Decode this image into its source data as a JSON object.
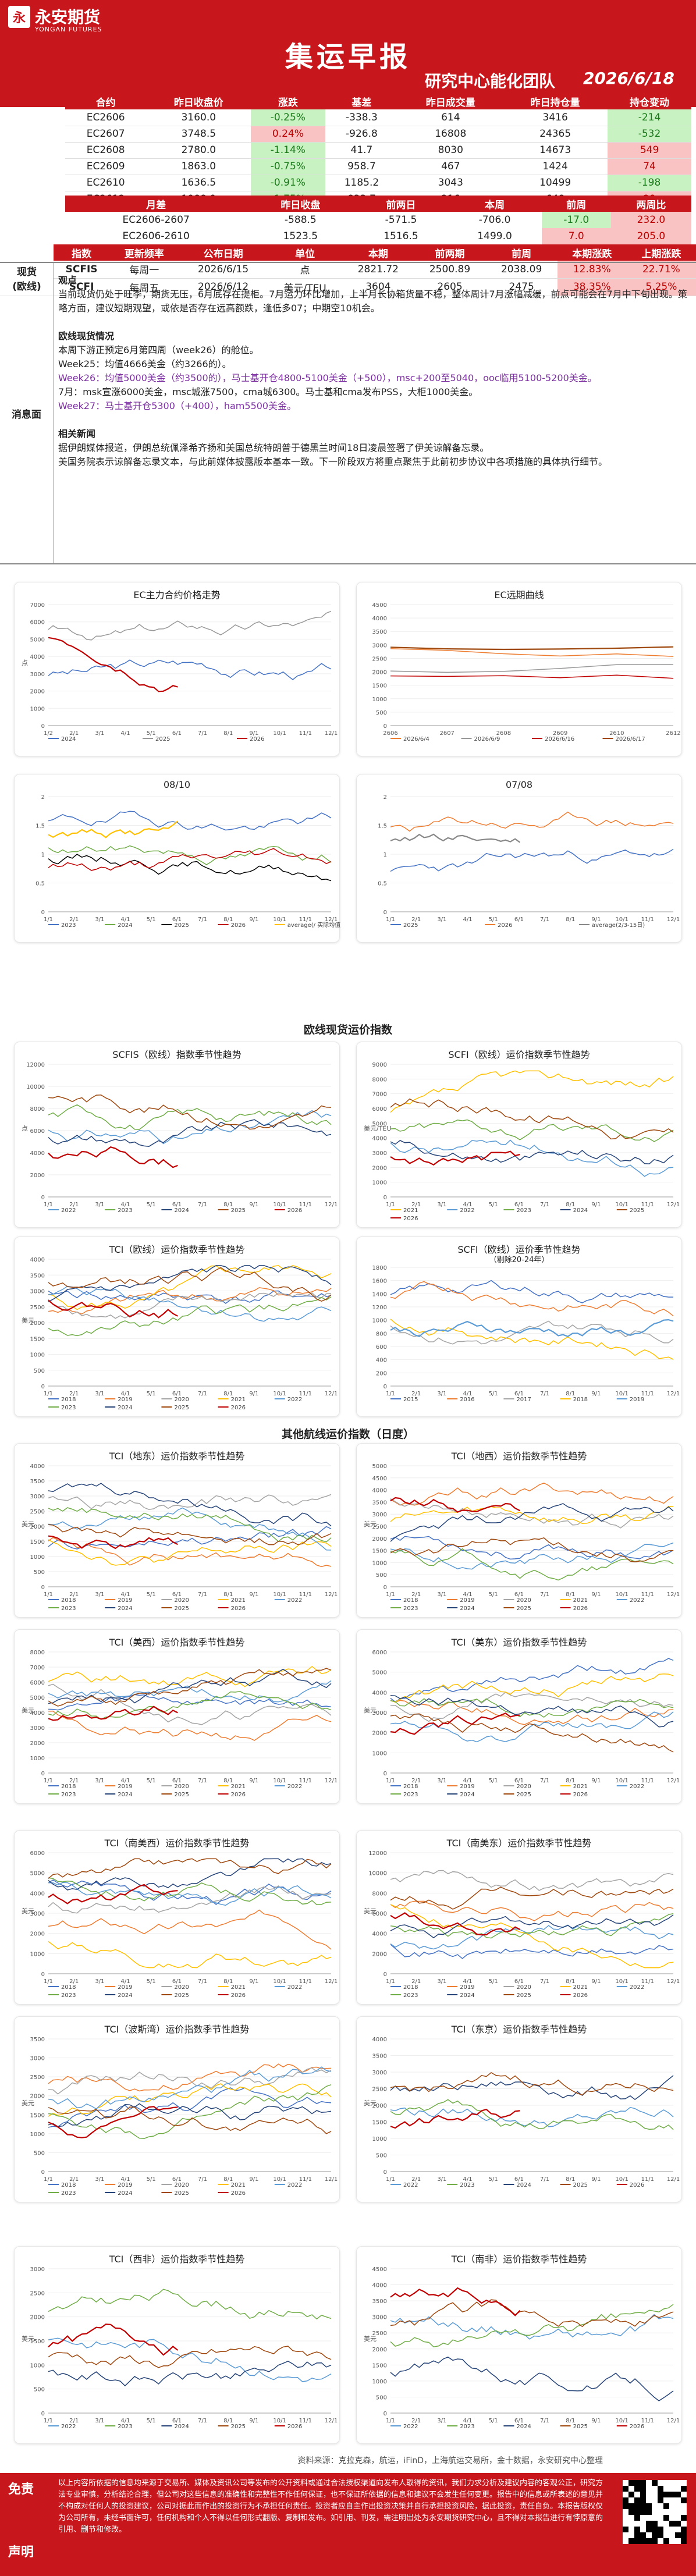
{
  "header": {
    "logo_glyph": "永",
    "logo_cn": "永安期货",
    "logo_en": "YONGAN FUTURES",
    "title": "集运早报",
    "team": "研究中心能化团队",
    "date": "2026/6/18"
  },
  "futures": {
    "columns": [
      "合约",
      "昨日收盘价",
      "涨跌",
      "基差",
      "昨日成交量",
      "昨日持仓量",
      "持仓变动"
    ],
    "rows": [
      [
        "EC2606",
        "3160.0",
        "-0.25%",
        "-338.3",
        "614",
        "3416",
        "-214"
      ],
      [
        "EC2607",
        "3748.5",
        "0.24%",
        "-926.8",
        "16808",
        "24365",
        "-532"
      ],
      [
        "EC2608",
        "2780.0",
        "-1.14%",
        "41.7",
        "8030",
        "14673",
        "549"
      ],
      [
        "EC2609",
        "1863.0",
        "-0.75%",
        "958.7",
        "467",
        "1424",
        "74"
      ],
      [
        "EC2610",
        "1636.5",
        "-0.91%",
        "1185.2",
        "3043",
        "10499",
        "-198"
      ],
      [
        "EC2612",
        "1988.0",
        "-1.75%",
        "833.7",
        "216",
        "648",
        "29"
      ]
    ]
  },
  "spreads": {
    "columns": [
      "月差",
      "昨日收盘",
      "前两日",
      "本周",
      "前周",
      "两周比"
    ],
    "rows": [
      [
        "EC2606-2607",
        "-588.5",
        "-571.5",
        "-706.0",
        "-17.0",
        "232.0"
      ],
      [
        "EC2606-2610",
        "1523.5",
        "1516.5",
        "1499.0",
        "7.0",
        "205.0"
      ]
    ]
  },
  "spot": {
    "columns": [
      "指数",
      "更新频率",
      "公布日期",
      "单位",
      "本期",
      "前两期",
      "前周",
      "本期涨跌",
      "上期涨跌"
    ],
    "side_label": "现货\n(欧线)",
    "rows": [
      [
        "SCFIS",
        "每周一",
        "2026/6/15",
        "点",
        "2821.72",
        "2500.89",
        "2038.09",
        "12.83%",
        "22.71%"
      ],
      [
        "SCFI",
        "每周五",
        "2026/6/12",
        "美元/TEU",
        "3604",
        "2605",
        "2475",
        "38.35%",
        "5.25%"
      ]
    ]
  },
  "news": {
    "side": "消息面",
    "h1": "观点",
    "p1": "当前现货仍处于旺季，期货无压，6月底存在提柜。7月运力环比增加，上半月长协箱货量不稳，整体周计7月涨幅减缓，前点可能会在7月中下旬出现。策略方面，建议短期观望，或依是否存在远高额跌，逢低多07；中期空10机会。",
    "h2": "欧线现货情况",
    "p2_1": "本周下游正预定6月第四周（week26）的舱位。",
    "p2_2": "Week25：均值4666美金（约3266的）。",
    "p2_3": "Week26：均值5000美金（约3500的），马士基开仓4800-5100美金（+500），msc+200至5040，ooc临用5100-5200美金。",
    "p2_4": "7月：msk宣涨6000美金，msc城涨7500，cma城6300。马士基和cma发布PSS，大柜1000美金。",
    "p2_5": "Week27：马士基开仓5300（+400），ham5500美金。",
    "h3": "相关新闻",
    "p3_1": "据伊朗媒体报道，伊朗总统佩泽希齐扬和美国总统特朗普于德黑兰时间18日凌晨签署了伊美谅解备忘录。",
    "p3_2": "美国务院表示谅解备忘录文本，与此前媒体披露版本基本一致。下一阶段双方将重点聚焦于此前初步协议中各项措施的具体执行细节。"
  },
  "charts": {
    "ec_main": {
      "title": "EC主力合约价格走势",
      "yticks": [
        "7000",
        "6000",
        "5000",
        "4000",
        "3000",
        "2000",
        "1000",
        "0"
      ],
      "ylabel": "点",
      "xticks": [
        "1/2",
        "2/1",
        "3/1",
        "4/1",
        "5/1",
        "6/1",
        "7/1",
        "8/1",
        "9/1",
        "10/1",
        "11/1",
        "12/1"
      ],
      "legend": [
        "2024",
        "2025",
        "2026"
      ]
    },
    "ec_curve": {
      "title": "EC远期曲线",
      "yticks": [
        "4500",
        "4000",
        "3500",
        "3000",
        "2500",
        "2000",
        "1500",
        "1000",
        "500",
        "0"
      ],
      "xticks": [
        "2606",
        "2607",
        "2608",
        "2609",
        "2610",
        "2612"
      ],
      "legend": [
        "2026/6/4",
        "2026/6/9",
        "2026/6/16",
        "2026/6/17"
      ]
    },
    "s0810": {
      "title": "08/10",
      "yticks": [
        "2",
        "1.5",
        "1",
        "0.5",
        "0"
      ],
      "legend": [
        "2023",
        "2024",
        "2025",
        "2026",
        "average(/ 实际均值)"
      ]
    },
    "s0708": {
      "title": "07/08",
      "yticks": [
        "2",
        "1.5",
        "1",
        "0.5",
        "0"
      ],
      "legend": [
        "2025",
        "2026",
        "average(2/3-15日)"
      ]
    },
    "sec_eu": "欧线现货运价指数",
    "scfis": {
      "title": "SCFIS（欧线）指数季节性趋势",
      "ylabel": "点",
      "yticks": [
        "12000",
        "10000",
        "8000",
        "6000",
        "4000",
        "2000",
        "0"
      ],
      "legend": [
        "2022",
        "2023",
        "2024",
        "2025",
        "2026"
      ]
    },
    "scfi_eu": {
      "title": "SCFI（欧线）运价指数季节性趋势",
      "ylabel": "美元/TEU",
      "yticks": [
        "9000",
        "8000",
        "7000",
        "6000",
        "5000",
        "4000",
        "3000",
        "2000",
        "1000",
        "0"
      ],
      "legend": [
        "2021",
        "2022",
        "2023",
        "2024",
        "2025",
        "2026"
      ]
    },
    "tci_eu": {
      "title": "TCI（欧线）运价指数季节性趋势",
      "ylabel": "美元",
      "yticks": [
        "4000",
        "3500",
        "3000",
        "2500",
        "2000",
        "1500",
        "1000",
        "500",
        "0"
      ],
      "legend": [
        "2018",
        "2019",
        "2020",
        "2021",
        "2022",
        "2023",
        "2024",
        "2025",
        "2026"
      ]
    },
    "scfi_ex": {
      "title": "SCFI（欧线）运价季节性趋势",
      "subtitle": "（剔除20-24年）",
      "yticks": [
        "1800",
        "1600",
        "1400",
        "1200",
        "1000",
        "800",
        "600",
        "400",
        "200",
        "0"
      ],
      "legend": [
        "2015",
        "2016",
        "2017",
        "2018",
        "2019"
      ]
    },
    "sec_other": "其他航线运价指数（日度）",
    "tci_fe": {
      "title": "TCI（地东）运价指数季节性趋势",
      "ylabel": "美元",
      "yticks": [
        "4000",
        "3500",
        "3000",
        "2500",
        "2000",
        "1500",
        "1000",
        "500",
        "0"
      ],
      "legend": [
        "2018",
        "2019",
        "2020",
        "2021",
        "2022",
        "2023",
        "2024",
        "2025",
        "2026"
      ]
    },
    "tci_med": {
      "title": "TCI（地西）运价指数季节性趋势",
      "ylabel": "美元",
      "yticks": [
        "5000",
        "4500",
        "4000",
        "3500",
        "3000",
        "2500",
        "2000",
        "1500",
        "1000",
        "500",
        "0"
      ],
      "legend": [
        "2018",
        "2019",
        "2020",
        "2021",
        "2022",
        "2023",
        "2024",
        "2025",
        "2026"
      ]
    },
    "tci_usw": {
      "title": "TCI（美西）运价指数季节性趋势",
      "ylabel": "美元",
      "yticks": [
        "8000",
        "7000",
        "6000",
        "5000",
        "4000",
        "3000",
        "2000",
        "1000",
        "0"
      ],
      "legend": [
        "2018",
        "2019",
        "2020",
        "2021",
        "2022",
        "2023",
        "2024",
        "2025",
        "2026"
      ]
    },
    "tci_use": {
      "title": "TCI（美东）运价指数季节性趋势",
      "ylabel": "美元",
      "yticks": [
        "6000",
        "5000",
        "4000",
        "3000",
        "2000",
        "1000",
        "0"
      ],
      "legend": [
        "2018",
        "2019",
        "2020",
        "2021",
        "2022",
        "2023",
        "2024",
        "2025",
        "2026"
      ]
    },
    "tci_sam_w": {
      "title": "TCI（南美西）运价指数季节性趋势",
      "ylabel": "美元",
      "yticks": [
        "6000",
        "5000",
        "4000",
        "3000",
        "2000",
        "1000",
        "0"
      ],
      "legend": [
        "2018",
        "2019",
        "2020",
        "2021",
        "2022",
        "2023",
        "2024",
        "2025",
        "2026"
      ]
    },
    "tci_sam_e": {
      "title": "TCI（南美东）运价指数季节性趋势",
      "ylabel": "美元",
      "yticks": [
        "12000",
        "10000",
        "8000",
        "6000",
        "4000",
        "2000",
        "0"
      ],
      "legend": [
        "2018",
        "2019",
        "2020",
        "2021",
        "2022",
        "2023",
        "2024",
        "2025",
        "2026"
      ]
    },
    "tci_pg": {
      "title": "TCI（波斯湾）运价指数季节性趋势",
      "ylabel": "美元",
      "yticks": [
        "3500",
        "3000",
        "2500",
        "2000",
        "1500",
        "1000",
        "500",
        "0"
      ],
      "legend": [
        "2018",
        "2019",
        "2020",
        "2021",
        "2022",
        "2023",
        "2024",
        "2025",
        "2026"
      ]
    },
    "tci_jp": {
      "title": "TCI（东京）运价指数季节性趋势",
      "ylabel": "美元",
      "yticks": [
        "4000",
        "3500",
        "3000",
        "2500",
        "2000",
        "1500",
        "1000",
        "500",
        "0"
      ],
      "legend": [
        "2022",
        "2023",
        "2024",
        "2025",
        "2026"
      ]
    },
    "tci_wafr": {
      "title": "TCI（西非）运价指数季节性趋势",
      "ylabel": "美元",
      "yticks": [
        "3000",
        "2500",
        "2000",
        "1500",
        "1000",
        "500",
        "0"
      ],
      "legend": [
        "2022",
        "2023",
        "2024",
        "2025",
        "2026"
      ]
    },
    "tci_safr": {
      "title": "TCI（南非）运价指数季节性趋势",
      "ylabel": "美元",
      "yticks": [
        "4500",
        "4000",
        "3500",
        "3000",
        "2500",
        "2000",
        "1500",
        "1000",
        "500",
        "0"
      ],
      "legend": [
        "2022",
        "2023",
        "2024",
        "2025",
        "2026"
      ]
    }
  },
  "xmonths": [
    "1/1",
    "2/1",
    "3/1",
    "4/1",
    "5/1",
    "6/1",
    "7/1",
    "8/1",
    "9/1",
    "10/1",
    "11/1",
    "12/1"
  ],
  "footer": {
    "source": "资料来源：克拉克森，航运，iFinD，上海航运交易所，金十数据，永安研究中心整理",
    "label1": "免责",
    "label2": "声明",
    "text": "以上内容所依据的信息均来源于交易所、媒体及资讯公司等发布的公开资料或通过合法授权渠道向发布人取得的资讯，我们力求分析及建议内容的客观公正，研究方法专业审慎，分析结论合理，但公司对这些信息的准确性和完整性不作任何保证，也不保证所依据的信息和建议不会发生任何变更。报告中的信息或所表述的意见并不构成对任何人的投资建议，公司对据此而作出的投资行为不承担任何责任。投资者应自主作出投资决策并自行承担投资风险，据此投资，责任自负。本报告版权仅为公司所有，未经书面许可，任何机构和个人不得以任何形式翻版、复制和发布。如引用、刊发，需注明出处为永安期货研究中心，且不得对本报告进行有悖原意的引用、删节和修改。"
  },
  "colors": {
    "brand": "#c8161d",
    "c2018": "#4472c4",
    "c2019": "#ed7d31",
    "c2020": "#a5a5a5",
    "c2021": "#ffc000",
    "c2022": "#5b9bd5",
    "c2023": "#70ad47",
    "c2024": "#264478",
    "c2025": "#9e480e",
    "c2026": "#c00000"
  }
}
